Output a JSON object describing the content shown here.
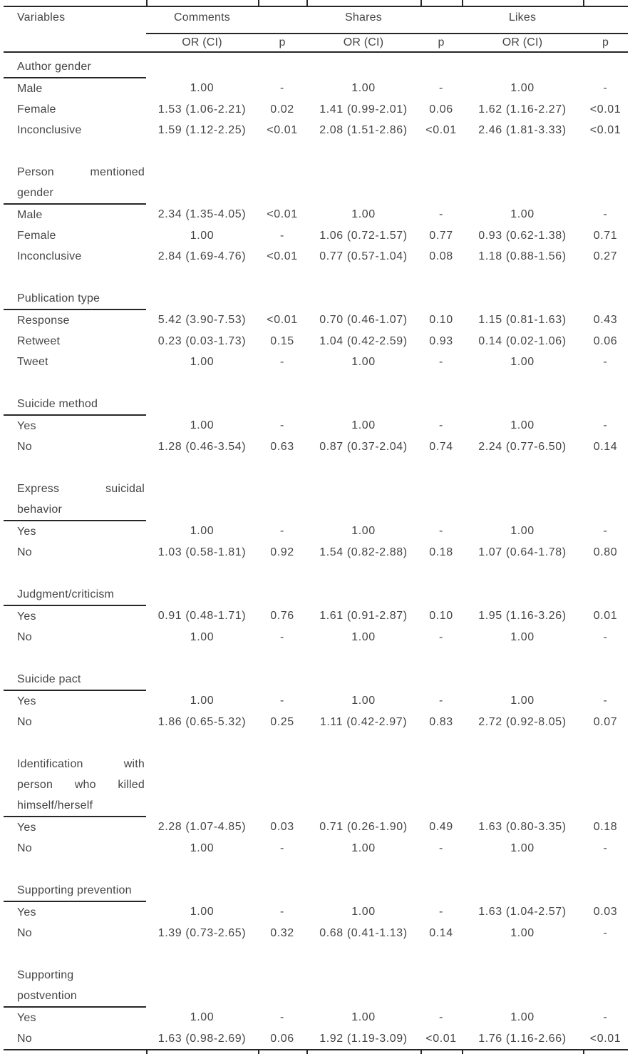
{
  "table": {
    "header": {
      "variables_label": "Variables",
      "groups": [
        {
          "label": "Comments",
          "or_label": "OR (CI)",
          "p_label": "p"
        },
        {
          "label": "Shares",
          "or_label": "OR (CI)",
          "p_label": "p"
        },
        {
          "label": "Likes",
          "or_label": "OR (CI)",
          "p_label": "p"
        }
      ]
    },
    "sections": [
      {
        "label": "Author gender",
        "label_lines": [
          [
            "Author gender"
          ]
        ],
        "rows": [
          {
            "label": "Male",
            "cells": [
              "1.00",
              "-",
              "1.00",
              "-",
              "1.00",
              "-"
            ]
          },
          {
            "label": "Female",
            "cells": [
              "1.53 (1.06-2.21)",
              "0.02",
              "1.41 (0.99-2.01)",
              "0.06",
              "1.62 (1.16-2.27)",
              "<0.01"
            ]
          },
          {
            "label": "Inconclusive",
            "cells": [
              "1.59 (1.12-2.25)",
              "<0.01",
              "2.08 (1.51-2.86)",
              "<0.01",
              "2.46 (1.81-3.33)",
              "<0.01"
            ]
          }
        ]
      },
      {
        "label": "Person mentioned gender",
        "label_lines": [
          [
            "Person",
            "mentioned"
          ],
          [
            "gender"
          ]
        ],
        "rows": [
          {
            "label": "Male",
            "cells": [
              "2.34 (1.35-4.05)",
              "<0.01",
              "1.00",
              "-",
              "1.00",
              "-"
            ]
          },
          {
            "label": "Female",
            "cells": [
              "1.00",
              "-",
              "1.06 (0.72-1.57)",
              "0.77",
              "0.93 (0.62-1.38)",
              "0.71"
            ]
          },
          {
            "label": "Inconclusive",
            "cells": [
              "2.84 (1.69-4.76)",
              "<0.01",
              "0.77 (0.57-1.04)",
              "0.08",
              "1.18 (0.88-1.56)",
              "0.27"
            ]
          }
        ]
      },
      {
        "label": "Publication type",
        "label_lines": [
          [
            "Publication type"
          ]
        ],
        "rows": [
          {
            "label": "Response",
            "cells": [
              "5.42 (3.90-7.53)",
              "<0.01",
              "0.70 (0.46-1.07)",
              "0.10",
              "1.15 (0.81-1.63)",
              "0.43"
            ]
          },
          {
            "label": "Retweet",
            "cells": [
              "0.23 (0.03-1.73)",
              "0.15",
              "1.04 (0.42-2.59)",
              "0.93",
              "0.14 (0.02-1.06)",
              "0.06"
            ]
          },
          {
            "label": "Tweet",
            "cells": [
              "1.00",
              "-",
              "1.00",
              "-",
              "1.00",
              "-"
            ]
          }
        ]
      },
      {
        "label": "Suicide method",
        "label_lines": [
          [
            "Suicide method"
          ]
        ],
        "rows": [
          {
            "label": "Yes",
            "cells": [
              "1.00",
              "-",
              "1.00",
              "-",
              "1.00",
              "-"
            ]
          },
          {
            "label": "No",
            "cells": [
              "1.28 (0.46-3.54)",
              "0.63",
              "0.87 (0.37-2.04)",
              "0.74",
              "2.24 (0.77-6.50)",
              "0.14"
            ]
          }
        ]
      },
      {
        "label": "Express suicidal behavior",
        "label_lines": [
          [
            "Express",
            "suicidal"
          ],
          [
            "behavior"
          ]
        ],
        "rows": [
          {
            "label": "Yes",
            "cells": [
              "1.00",
              "-",
              "1.00",
              "-",
              "1.00",
              "-"
            ]
          },
          {
            "label": "No",
            "cells": [
              "1.03 (0.58-1.81)",
              "0.92",
              "1.54 (0.82-2.88)",
              "0.18",
              "1.07 (0.64-1.78)",
              "0.80"
            ]
          }
        ]
      },
      {
        "label": "Judgment/criticism",
        "label_lines": [
          [
            "Judgment/criticism"
          ]
        ],
        "rows": [
          {
            "label": "Yes",
            "cells": [
              "0.91 (0.48-1.71)",
              "0.76",
              "1.61 (0.91-2.87)",
              "0.10",
              "1.95 (1.16-3.26)",
              "0.01"
            ]
          },
          {
            "label": "No",
            "cells": [
              "1.00",
              "-",
              "1.00",
              "-",
              "1.00",
              "-"
            ]
          }
        ]
      },
      {
        "label": "Suicide pact",
        "label_lines": [
          [
            "Suicide pact"
          ]
        ],
        "rows": [
          {
            "label": "Yes",
            "cells": [
              "1.00",
              "-",
              "1.00",
              "-",
              "1.00",
              "-"
            ]
          },
          {
            "label": "No",
            "cells": [
              "1.86 (0.65-5.32)",
              "0.25",
              "1.11 (0.42-2.97)",
              "0.83",
              "2.72 (0.92-8.05)",
              "0.07"
            ]
          }
        ]
      },
      {
        "label": "Identification with person who killed himself/herself",
        "label_lines": [
          [
            "Identification",
            "with"
          ],
          [
            "person",
            "who",
            "killed"
          ],
          [
            "himself/herself"
          ]
        ],
        "rows": [
          {
            "label": "Yes",
            "cells": [
              "2.28 (1.07-4.85)",
              "0.03",
              "0.71 (0.26-1.90)",
              "0.49",
              "1.63 (0.80-3.35)",
              "0.18"
            ]
          },
          {
            "label": "No",
            "cells": [
              "1.00",
              "-",
              "1.00",
              "-",
              "1.00",
              "-"
            ]
          }
        ]
      },
      {
        "label": "Supporting prevention",
        "label_lines": [
          [
            "Supporting prevention"
          ]
        ],
        "rows": [
          {
            "label": "Yes",
            "cells": [
              "1.00",
              "-",
              "1.00",
              "-",
              "1.63 (1.04-2.57)",
              "0.03"
            ]
          },
          {
            "label": "No",
            "cells": [
              "1.39 (0.73-2.65)",
              "0.32",
              "0.68 (0.41-1.13)",
              "0.14",
              "1.00",
              "-"
            ]
          }
        ]
      },
      {
        "label": "Supporting postvention",
        "label_lines": [
          [
            "Supporting"
          ],
          [
            "postvention"
          ]
        ],
        "rows": [
          {
            "label": "Yes",
            "cells": [
              "1.00",
              "-",
              "1.00",
              "-",
              "1.00",
              "-"
            ]
          },
          {
            "label": "No",
            "cells": [
              "1.63 (0.98-2.69)",
              "0.06",
              "1.92 (1.19-3.09)",
              "<0.01",
              "1.76 (1.16-2.66)",
              "<0.01"
            ]
          }
        ]
      }
    ]
  }
}
